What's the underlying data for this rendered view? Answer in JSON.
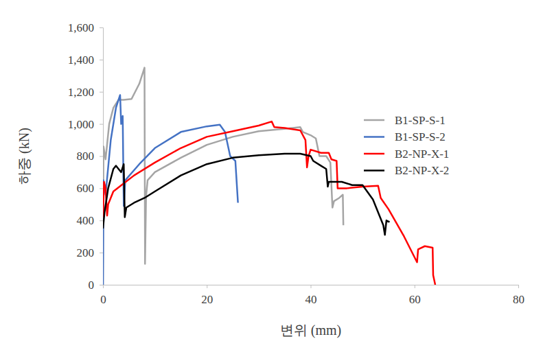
{
  "chart_data": {
    "type": "line",
    "x_label": "변위 (mm)",
    "y_label": "하중 (kN)",
    "xlim": [
      0,
      80
    ],
    "xticks": [
      0,
      20,
      40,
      60,
      80
    ],
    "ylim": [
      0,
      1600
    ],
    "yticks": [
      0,
      200,
      400,
      600,
      800,
      {
        "value": 1000,
        "label": "1,000"
      },
      {
        "value": 1200,
        "label": "1,200"
      },
      {
        "value": 1400,
        "label": "1,400"
      },
      {
        "value": 1600,
        "label": "1,600"
      }
    ],
    "grid": false,
    "legend": "upper right",
    "series": [
      {
        "name": "B1-SP-S-1",
        "color": "#a5a5a5",
        "x": [
          0,
          0.1,
          0.5,
          1.2,
          2,
          3,
          4,
          5.5,
          7,
          8,
          8.1,
          8.3,
          8.6,
          10,
          15,
          20,
          25,
          30,
          35,
          38,
          38.5,
          40,
          41,
          41.7,
          43,
          43.8,
          44.2,
          44.5,
          45.5,
          46.2,
          46.3
        ],
        "values": [
          0,
          860,
          780,
          1000,
          1100,
          1150,
          1150,
          1155,
          1250,
          1350,
          130,
          550,
          650,
          700,
          790,
          870,
          920,
          955,
          970,
          980,
          950,
          930,
          910,
          800,
          800,
          760,
          480,
          520,
          540,
          560,
          370
        ]
      },
      {
        "name": "B1-SP-S-2",
        "color": "#4472c4",
        "x": [
          0,
          0.1,
          0.5,
          1.5,
          2.5,
          3.3,
          3.5,
          3.8,
          4,
          4.3,
          7,
          10,
          15,
          20,
          22.5,
          23.5,
          24.5,
          25.5,
          26
        ],
        "values": [
          0,
          650,
          560,
          900,
          1100,
          1180,
          1000,
          1050,
          490,
          650,
          750,
          850,
          950,
          985,
          995,
          950,
          800,
          770,
          510
        ]
      },
      {
        "name": "B2-NP-X-1",
        "color": "#ff0000",
        "x": [
          0,
          0.2,
          0.5,
          0.8,
          1,
          2,
          4,
          6,
          10,
          15,
          20,
          25,
          30,
          32.5,
          33,
          35,
          38,
          39,
          39.3,
          39.6,
          40,
          42,
          43.5,
          44,
          45,
          45.2,
          47,
          50,
          53,
          53.5,
          55,
          58,
          60.5,
          60.7,
          62,
          63.5,
          63.6,
          64
        ],
        "values": [
          420,
          640,
          600,
          430,
          500,
          580,
          630,
          680,
          760,
          850,
          920,
          955,
          990,
          1015,
          980,
          975,
          960,
          900,
          730,
          800,
          840,
          820,
          820,
          780,
          770,
          600,
          600,
          610,
          615,
          540,
          470,
          300,
          140,
          220,
          240,
          230,
          60,
          0
        ]
      },
      {
        "name": "B2-NP-X-2",
        "color": "#000000",
        "x": [
          0,
          0.3,
          1,
          2,
          2.5,
          3,
          3.5,
          4,
          4.2,
          4.5,
          6,
          8,
          10,
          15,
          20,
          25,
          30,
          35,
          38,
          40,
          40.5,
          42,
          43,
          43.3,
          43.5,
          46,
          48,
          50,
          52,
          54,
          54.3,
          54.6,
          55.2
        ],
        "values": [
          350,
          450,
          600,
          720,
          740,
          720,
          700,
          750,
          420,
          480,
          510,
          540,
          580,
          680,
          750,
          790,
          805,
          815,
          815,
          800,
          770,
          740,
          720,
          610,
          640,
          640,
          620,
          620,
          530,
          370,
          310,
          400,
          390
        ]
      }
    ]
  }
}
